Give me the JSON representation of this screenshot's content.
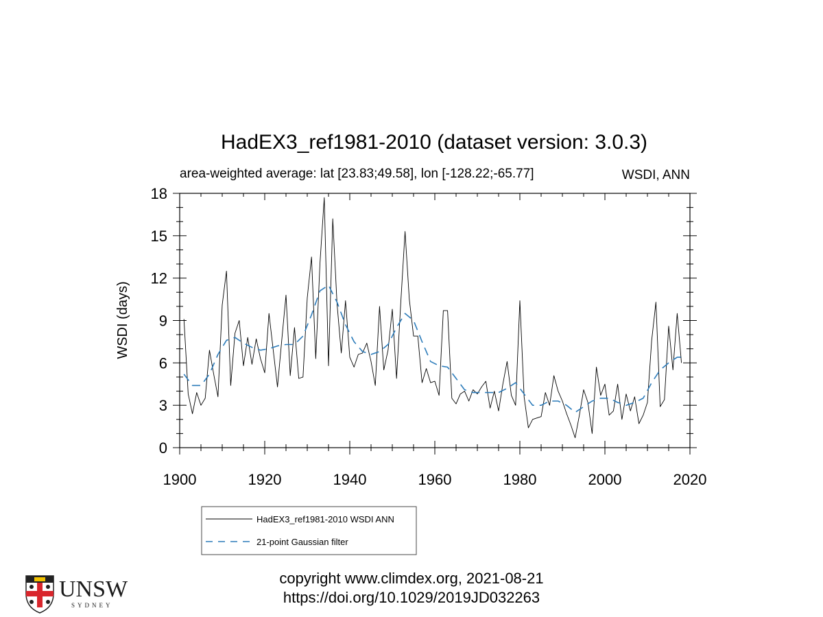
{
  "chart_data": {
    "type": "line",
    "title": "HadEX3_ref1981-2010 (dataset version: 3.0.3)",
    "subtitle_left": "area-weighted average: lat [23.83;49.58], lon [-128.22;-65.77]",
    "subtitle_right": "WSDI, ANN",
    "xlabel": "",
    "ylabel": "WSDI (days)",
    "xlim": [
      1900,
      2020
    ],
    "ylim": [
      0,
      18
    ],
    "xticks": [
      1900,
      1920,
      1940,
      1960,
      1980,
      2000,
      2020
    ],
    "yticks": [
      0,
      3,
      6,
      9,
      12,
      15,
      18
    ],
    "legend_position": "bottom",
    "series": [
      {
        "name": "HadEX3_ref1981-2010 WSDI ANN",
        "style": "solid",
        "color": "#000000",
        "x": [
          1901,
          1902,
          1903,
          1904,
          1905,
          1906,
          1907,
          1908,
          1909,
          1910,
          1911,
          1912,
          1913,
          1914,
          1915,
          1916,
          1917,
          1918,
          1919,
          1920,
          1921,
          1922,
          1923,
          1924,
          1925,
          1926,
          1927,
          1928,
          1929,
          1930,
          1931,
          1932,
          1933,
          1934,
          1935,
          1936,
          1937,
          1938,
          1939,
          1940,
          1941,
          1942,
          1943,
          1944,
          1945,
          1946,
          1947,
          1948,
          1949,
          1950,
          1951,
          1952,
          1953,
          1954,
          1955,
          1956,
          1957,
          1958,
          1959,
          1960,
          1961,
          1962,
          1963,
          1964,
          1965,
          1966,
          1967,
          1968,
          1969,
          1970,
          1971,
          1972,
          1973,
          1974,
          1975,
          1976,
          1977,
          1978,
          1979,
          1980,
          1981,
          1982,
          1983,
          1984,
          1985,
          1986,
          1987,
          1988,
          1989,
          1990,
          1991,
          1992,
          1993,
          1994,
          1995,
          1996,
          1997,
          1998,
          1999,
          2000,
          2001,
          2002,
          2003,
          2004,
          2005,
          2006,
          2007,
          2008,
          2009,
          2010,
          2011,
          2012,
          2013,
          2014,
          2015,
          2016,
          2017,
          2018
        ],
        "y": [
          9.1,
          3.8,
          2.4,
          3.9,
          3.0,
          3.5,
          6.9,
          5.2,
          3.6,
          10.1,
          12.5,
          4.4,
          8.1,
          9.0,
          5.8,
          7.8,
          5.9,
          7.7,
          6.3,
          5.3,
          9.5,
          6.9,
          4.3,
          7.6,
          10.8,
          5.1,
          8.5,
          4.9,
          5.0,
          10.6,
          13.5,
          6.3,
          13.1,
          17.7,
          5.8,
          16.2,
          10.2,
          6.7,
          10.4,
          6.4,
          5.7,
          6.6,
          6.7,
          7.4,
          6.1,
          4.4,
          10.0,
          5.5,
          6.9,
          9.8,
          4.9,
          10.3,
          15.3,
          10.5,
          7.9,
          7.9,
          4.6,
          5.6,
          4.6,
          4.7,
          3.7,
          9.7,
          9.7,
          3.5,
          3.1,
          3.8,
          4.0,
          3.3,
          4.1,
          3.8,
          4.3,
          4.7,
          2.8,
          4.0,
          2.6,
          4.5,
          6.1,
          3.7,
          3.0,
          10.4,
          3.6,
          1.4,
          2.0,
          2.1,
          2.2,
          3.9,
          3.0,
          5.1,
          4.0,
          3.3,
          2.4,
          1.6,
          0.7,
          2.3,
          4.1,
          3.2,
          1.0,
          5.7,
          3.7,
          4.5,
          2.3,
          2.6,
          4.5,
          2.0,
          3.8,
          2.6,
          3.6,
          1.7,
          2.3,
          3.2,
          7.6,
          10.3,
          2.9,
          3.4,
          8.6,
          5.5,
          9.5,
          6.0
        ]
      },
      {
        "name": "21-point Gaussian filter",
        "style": "dashed",
        "color": "#2b7bba",
        "x": [
          1901,
          1903,
          1905,
          1907,
          1909,
          1911,
          1913,
          1915,
          1917,
          1919,
          1921,
          1923,
          1925,
          1927,
          1929,
          1931,
          1933,
          1935,
          1937,
          1939,
          1941,
          1943,
          1945,
          1947,
          1949,
          1951,
          1953,
          1955,
          1957,
          1959,
          1961,
          1963,
          1965,
          1967,
          1969,
          1971,
          1973,
          1975,
          1977,
          1979,
          1981,
          1983,
          1985,
          1987,
          1989,
          1991,
          1993,
          1995,
          1997,
          1999,
          2001,
          2003,
          2005,
          2007,
          2009,
          2011,
          2013,
          2015,
          2017,
          2018
        ],
        "y": [
          5.2,
          4.4,
          4.4,
          5.2,
          6.6,
          7.6,
          7.8,
          7.4,
          7.1,
          6.9,
          7.0,
          7.2,
          7.3,
          7.3,
          7.9,
          9.4,
          11.1,
          11.5,
          10.3,
          8.7,
          7.5,
          6.8,
          6.6,
          6.8,
          7.3,
          8.5,
          9.5,
          9.0,
          7.5,
          6.1,
          5.8,
          5.7,
          4.9,
          4.1,
          3.9,
          3.9,
          3.9,
          3.9,
          4.2,
          4.6,
          3.8,
          3.0,
          3.0,
          3.3,
          3.3,
          3.0,
          2.5,
          2.9,
          3.3,
          3.5,
          3.5,
          3.2,
          3.0,
          3.2,
          3.5,
          4.6,
          5.5,
          6.0,
          6.4,
          6.4
        ]
      }
    ]
  },
  "footer": {
    "copyright": "copyright www.climdex.org, 2021-08-21",
    "doi": "https://doi.org/10.1029/2019JD032263"
  },
  "logo": {
    "wordmark": "UNSW",
    "sub": "SYDNEY"
  }
}
